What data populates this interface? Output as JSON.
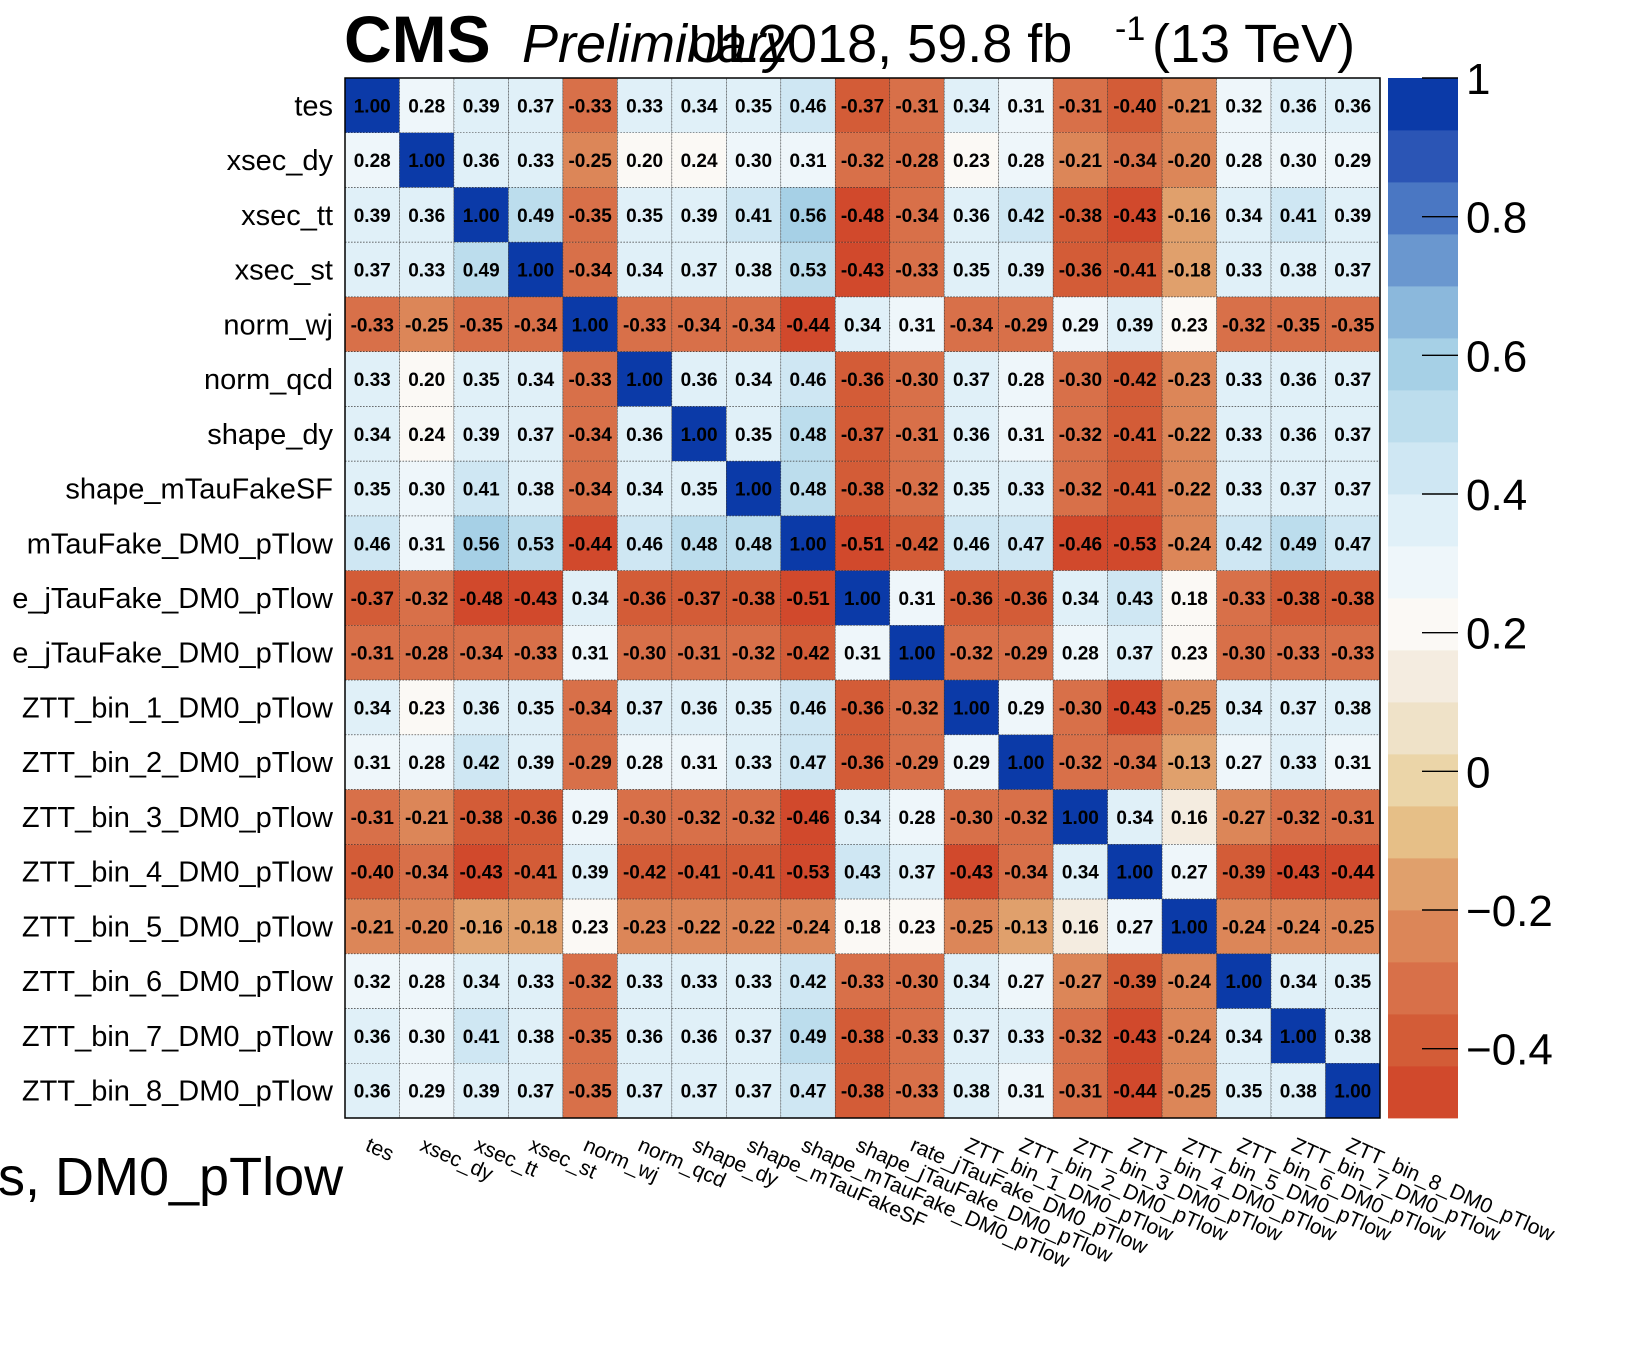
{
  "header": {
    "experiment": "CMS",
    "status": "Preliminary",
    "lumi_label": "UL2018, 59.8 fb",
    "lumi_exponent": "-1",
    "energy_label": "(13 TeV)"
  },
  "footer_label": "s, DM0_pTlow",
  "chart_data": {
    "type": "heatmap",
    "title": "",
    "parameters": [
      "tes",
      "xsec_dy",
      "xsec_tt",
      "xsec_st",
      "norm_wj",
      "norm_qcd",
      "shape_dy",
      "shape_mTauFakeSF",
      "shape_mTauFake_DM0_pTlow",
      "shape_jTauFake_DM0_pTlow",
      "rate_jTauFake_DM0_pTlow",
      "ZTT_bin_1_DM0_pTlow",
      "ZTT_bin_2_DM0_pTlow",
      "ZTT_bin_3_DM0_pTlow",
      "ZTT_bin_4_DM0_pTlow",
      "ZTT_bin_5_DM0_pTlow",
      "ZTT_bin_6_DM0_pTlow",
      "ZTT_bin_7_DM0_pTlow",
      "ZTT_bin_8_DM0_pTlow"
    ],
    "y_tick_labels": [
      "tes",
      "xsec_dy",
      "xsec_tt",
      "xsec_st",
      "norm_wj",
      "norm_qcd",
      "shape_dy",
      "shape_mTauFakeSF",
      "mTauFake_DM0_pTlow",
      "e_jTauFake_DM0_pTlow",
      "e_jTauFake_DM0_pTlow",
      "ZTT_bin_1_DM0_pTlow",
      "ZTT_bin_2_DM0_pTlow",
      "ZTT_bin_3_DM0_pTlow",
      "ZTT_bin_4_DM0_pTlow",
      "ZTT_bin_5_DM0_pTlow",
      "ZTT_bin_6_DM0_pTlow",
      "ZTT_bin_7_DM0_pTlow",
      "ZTT_bin_8_DM0_pTlow"
    ],
    "x_tick_labels": [
      "tes",
      "xsec_dy",
      "xsec_tt",
      "xsec_st",
      "norm_wj",
      "norm_qcd",
      "shape_dy",
      "shape_mTauFakeSF",
      "shape_mTauFake_DM0_pTlow",
      "shape_jTauFake_DM0_pTlow",
      "rate_jTauFake_DM0_pTlow",
      "ZTT_bin_1_DM0_pTlow",
      "ZTT_bin_2_DM0_pTlow",
      "ZTT_bin_3_DM0_pTlow",
      "ZTT_bin_4_DM0_pTlow",
      "ZTT_bin_5_DM0_pTlow",
      "ZTT_bin_6_DM0_pTlow",
      "ZTT_bin_7_DM0_pTlow",
      "ZTT_bin_8_DM0_pTlow"
    ],
    "values": [
      [
        1.0,
        0.28,
        0.39,
        0.37,
        -0.33,
        0.33,
        0.34,
        0.35,
        0.46,
        -0.37,
        -0.31,
        0.34,
        0.31,
        -0.31,
        -0.4,
        -0.21,
        0.32,
        0.36,
        0.36
      ],
      [
        0.28,
        1.0,
        0.36,
        0.33,
        -0.25,
        0.2,
        0.24,
        0.3,
        0.31,
        -0.32,
        -0.28,
        0.23,
        0.28,
        -0.21,
        -0.34,
        -0.2,
        0.28,
        0.3,
        0.29
      ],
      [
        0.39,
        0.36,
        1.0,
        0.49,
        -0.35,
        0.35,
        0.39,
        0.41,
        0.56,
        -0.48,
        -0.34,
        0.36,
        0.42,
        -0.38,
        -0.43,
        -0.16,
        0.34,
        0.41,
        0.39
      ],
      [
        0.37,
        0.33,
        0.49,
        1.0,
        -0.34,
        0.34,
        0.37,
        0.38,
        0.53,
        -0.43,
        -0.33,
        0.35,
        0.39,
        -0.36,
        -0.41,
        -0.18,
        0.33,
        0.38,
        0.37
      ],
      [
        -0.33,
        -0.25,
        -0.35,
        -0.34,
        1.0,
        -0.33,
        -0.34,
        -0.34,
        -0.44,
        0.34,
        0.31,
        -0.34,
        -0.29,
        0.29,
        0.39,
        0.23,
        -0.32,
        -0.35,
        -0.35
      ],
      [
        0.33,
        0.2,
        0.35,
        0.34,
        -0.33,
        1.0,
        0.36,
        0.34,
        0.46,
        -0.36,
        -0.3,
        0.37,
        0.28,
        -0.3,
        -0.42,
        -0.23,
        0.33,
        0.36,
        0.37
      ],
      [
        0.34,
        0.24,
        0.39,
        0.37,
        -0.34,
        0.36,
        1.0,
        0.35,
        0.48,
        -0.37,
        -0.31,
        0.36,
        0.31,
        -0.32,
        -0.41,
        -0.22,
        0.33,
        0.36,
        0.37
      ],
      [
        0.35,
        0.3,
        0.41,
        0.38,
        -0.34,
        0.34,
        0.35,
        1.0,
        0.48,
        -0.38,
        -0.32,
        0.35,
        0.33,
        -0.32,
        -0.41,
        -0.22,
        0.33,
        0.37,
        0.37
      ],
      [
        0.46,
        0.31,
        0.56,
        0.53,
        -0.44,
        0.46,
        0.48,
        0.48,
        1.0,
        -0.51,
        -0.42,
        0.46,
        0.47,
        -0.46,
        -0.53,
        -0.24,
        0.42,
        0.49,
        0.47
      ],
      [
        -0.37,
        -0.32,
        -0.48,
        -0.43,
        0.34,
        -0.36,
        -0.37,
        -0.38,
        -0.51,
        1.0,
        0.31,
        -0.36,
        -0.36,
        0.34,
        0.43,
        0.18,
        -0.33,
        -0.38,
        -0.38
      ],
      [
        -0.31,
        -0.28,
        -0.34,
        -0.33,
        0.31,
        -0.3,
        -0.31,
        -0.32,
        -0.42,
        0.31,
        1.0,
        -0.32,
        -0.29,
        0.28,
        0.37,
        0.23,
        -0.3,
        -0.33,
        -0.33
      ],
      [
        0.34,
        0.23,
        0.36,
        0.35,
        -0.34,
        0.37,
        0.36,
        0.35,
        0.46,
        -0.36,
        -0.32,
        1.0,
        0.29,
        -0.3,
        -0.43,
        -0.25,
        0.34,
        0.37,
        0.38
      ],
      [
        0.31,
        0.28,
        0.42,
        0.39,
        -0.29,
        0.28,
        0.31,
        0.33,
        0.47,
        -0.36,
        -0.29,
        0.29,
        1.0,
        -0.32,
        -0.34,
        -0.13,
        0.27,
        0.33,
        0.31
      ],
      [
        -0.31,
        -0.21,
        -0.38,
        -0.36,
        0.29,
        -0.3,
        -0.32,
        -0.32,
        -0.46,
        0.34,
        0.28,
        -0.3,
        -0.32,
        1.0,
        0.34,
        0.16,
        -0.27,
        -0.32,
        -0.31
      ],
      [
        -0.4,
        -0.34,
        -0.43,
        -0.41,
        0.39,
        -0.42,
        -0.41,
        -0.41,
        -0.53,
        0.43,
        0.37,
        -0.43,
        -0.34,
        0.34,
        1.0,
        0.27,
        -0.39,
        -0.43,
        -0.44
      ],
      [
        -0.21,
        -0.2,
        -0.16,
        -0.18,
        0.23,
        -0.23,
        -0.22,
        -0.22,
        -0.24,
        0.18,
        0.23,
        -0.25,
        -0.13,
        0.16,
        0.27,
        1.0,
        -0.24,
        -0.24,
        -0.25
      ],
      [
        0.32,
        0.28,
        0.34,
        0.33,
        -0.32,
        0.33,
        0.33,
        0.33,
        0.42,
        -0.33,
        -0.3,
        0.34,
        0.27,
        -0.27,
        -0.39,
        -0.24,
        1.0,
        0.34,
        0.35
      ],
      [
        0.36,
        0.3,
        0.41,
        0.38,
        -0.35,
        0.36,
        0.36,
        0.37,
        0.49,
        -0.38,
        -0.33,
        0.37,
        0.33,
        -0.32,
        -0.43,
        -0.24,
        0.34,
        1.0,
        0.38
      ],
      [
        0.36,
        0.29,
        0.39,
        0.37,
        -0.35,
        0.37,
        0.37,
        0.37,
        0.47,
        -0.38,
        -0.33,
        0.38,
        0.31,
        -0.31,
        -0.44,
        -0.25,
        0.35,
        0.38,
        1.0
      ]
    ],
    "color_scale": {
      "zmin": -0.5,
      "zmax": 1.0,
      "levels": 20,
      "ticks": [
        "1",
        "0.8",
        "0.6",
        "0.4",
        "0.2",
        "0",
        "−0.2",
        "−0.4"
      ],
      "tick_values": [
        1.0,
        0.8,
        0.6,
        0.4,
        0.2,
        0.0,
        -0.2,
        -0.4
      ],
      "palette": [
        "#d1492c",
        "#d35c37",
        "#d87049",
        "#dc8658",
        "#e0a06c",
        "#e6bf87",
        "#ebd5a8",
        "#efe2c8",
        "#f4ece0",
        "#fbf9f5",
        "#eef6fa",
        "#e0f0f8",
        "#cfe7f3",
        "#bcdded",
        "#a6d0e6",
        "#8bb8dc",
        "#6a97cf",
        "#4a77c3",
        "#2b55b5",
        "#0b3aa8"
      ]
    }
  }
}
